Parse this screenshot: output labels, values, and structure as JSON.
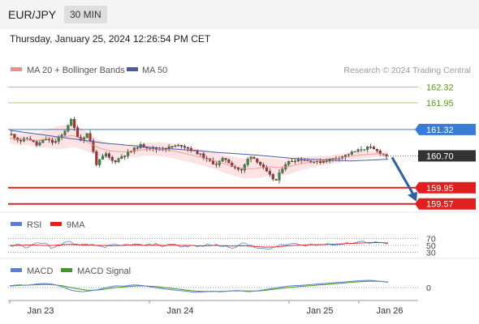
{
  "header": {
    "pair": "EUR/JPY",
    "timeframe": "30 MIN"
  },
  "timestamp": "Thursday, January 25, 2024 12:26:54 PM CET",
  "colors": {
    "bollinger": "#f08c8c",
    "bollinger_fill": "#fde3e3",
    "ma50": "#4a5aa8",
    "resistance": "#a5d07c",
    "resistance_text": "#5a9a1e",
    "pivot": "#3a7bd5",
    "support": "#e02020",
    "current": "#333333",
    "arrow": "#2f5fa0",
    "rsi": "#5b7fd8",
    "rsi_ma": "#e02020",
    "macd": "#5b7fd8",
    "macd_signal": "#3f9a1e"
  },
  "legend": {
    "bb_label": "MA 20 + Bollinger Bands",
    "ma50_label": "MA 50"
  },
  "watermark": "Research © 2024 Trading Central",
  "chart_data": {
    "type": "candlestick",
    "ylim": [
      159.45,
      162.5
    ],
    "x_labels": [
      "Jan 23",
      "Jan 24",
      "Jan 25",
      "Jan 26"
    ],
    "levels": [
      {
        "value": 162.32,
        "label": "162.32",
        "kind": "resistance"
      },
      {
        "value": 161.95,
        "label": "161.95",
        "kind": "resistance"
      },
      {
        "value": 161.32,
        "label": "161.32",
        "kind": "pivot"
      },
      {
        "value": 160.7,
        "label": "160.70",
        "kind": "current"
      },
      {
        "value": 159.95,
        "label": "159.95",
        "kind": "support"
      },
      {
        "value": 159.57,
        "label": "159.57",
        "kind": "support"
      }
    ],
    "price_path": [
      161.2,
      161.05,
      161.12,
      160.95,
      161.1,
      161.0,
      161.2,
      161.55,
      161.05,
      161.25,
      160.5,
      160.75,
      160.55,
      160.7,
      160.8,
      160.95,
      160.9,
      160.85,
      160.88,
      160.92,
      160.95,
      160.85,
      160.75,
      160.6,
      160.5,
      160.65,
      160.45,
      160.35,
      160.72,
      160.55,
      160.3,
      160.1,
      160.5,
      160.6,
      160.62,
      160.58,
      160.55,
      160.6,
      160.65,
      160.7,
      160.78,
      160.85,
      160.9,
      160.8,
      160.7
    ],
    "ma20": [
      161.12,
      161.08,
      161.1,
      161.06,
      161.1,
      161.12,
      161.15,
      161.18,
      161.1,
      160.98,
      160.88,
      160.82,
      160.8,
      160.8,
      160.82,
      160.85,
      160.86,
      160.85,
      160.82,
      160.78,
      160.73,
      160.68,
      160.62,
      160.57,
      160.5,
      160.45,
      160.4,
      160.4,
      160.42,
      160.44,
      160.42,
      160.45,
      160.5,
      160.54,
      160.57,
      160.59,
      160.62,
      160.66,
      160.7,
      160.72,
      160.74,
      160.75,
      160.74
    ],
    "ma50": [
      161.3,
      161.24,
      161.18,
      161.12,
      161.06,
      161.0,
      160.96,
      160.92,
      160.88,
      160.85,
      160.82,
      160.78,
      160.75,
      160.72,
      160.68,
      160.64,
      160.62,
      160.6,
      160.58,
      160.6,
      160.62
    ],
    "bb_width": [
      0.25,
      0.28,
      0.3,
      0.42,
      0.55,
      0.55,
      0.48,
      0.4,
      0.35,
      0.32,
      0.3,
      0.3,
      0.32,
      0.34,
      0.36,
      0.36,
      0.36,
      0.4,
      0.44,
      0.46,
      0.46,
      0.44,
      0.4,
      0.36,
      0.3,
      0.26,
      0.22,
      0.2,
      0.18,
      0.16,
      0.14,
      0.12
    ],
    "forecast_target": 159.57,
    "rsi": {
      "labels": [
        "RSI",
        "9MA"
      ],
      "levels": [
        70,
        50,
        30
      ],
      "level_labels": [
        "70",
        "50",
        "30"
      ],
      "ylim": [
        20,
        80
      ],
      "rsi_values": [
        47,
        52,
        44,
        55,
        58,
        41,
        53,
        62,
        49,
        53,
        50,
        46,
        51,
        49,
        53,
        52,
        50,
        54,
        47,
        56,
        45,
        50,
        46,
        52,
        51,
        47,
        44,
        56,
        50,
        43,
        37,
        48,
        52,
        55,
        49,
        53,
        50,
        56,
        52,
        55,
        58,
        62,
        57,
        60,
        54
      ],
      "ma_values": [
        50,
        50,
        51,
        51,
        50,
        50,
        52,
        53,
        52,
        51,
        50,
        50,
        49,
        50,
        51,
        51,
        50,
        51,
        50,
        51,
        50,
        50,
        49,
        49,
        50,
        49,
        48,
        49,
        48,
        46,
        45,
        46,
        48,
        50,
        51,
        52,
        52,
        53,
        54,
        55,
        56,
        57,
        58,
        58,
        57
      ]
    },
    "macd": {
      "labels": [
        "MACD",
        "MACD Signal"
      ],
      "zero_label": "0",
      "ylim": [
        -0.3,
        0.3
      ],
      "macd_values": [
        0.05,
        0.08,
        0.06,
        0.1,
        0.12,
        0.09,
        0.02,
        -0.08,
        -0.12,
        -0.1,
        -0.06,
        0.0,
        0.05,
        0.04,
        0.08,
        0.06,
        0.02,
        -0.02,
        -0.05,
        -0.08,
        -0.1,
        -0.14,
        -0.12,
        -0.11,
        -0.12,
        -0.1,
        -0.08,
        -0.12,
        -0.1,
        -0.06,
        -0.02,
        0.02,
        0.05,
        0.06,
        0.08,
        0.1,
        0.12,
        0.14,
        0.16,
        0.18,
        0.2,
        0.21,
        0.18,
        0.15
      ],
      "signal_values": [
        0.04,
        0.06,
        0.07,
        0.08,
        0.09,
        0.08,
        0.05,
        0.0,
        -0.05,
        -0.08,
        -0.07,
        -0.04,
        0.0,
        0.02,
        0.04,
        0.05,
        0.04,
        0.02,
        -0.01,
        -0.04,
        -0.07,
        -0.1,
        -0.11,
        -0.11,
        -0.11,
        -0.1,
        -0.09,
        -0.1,
        -0.1,
        -0.08,
        -0.05,
        -0.02,
        0.01,
        0.03,
        0.05,
        0.07,
        0.09,
        0.11,
        0.13,
        0.15,
        0.17,
        0.18,
        0.18,
        0.16
      ]
    }
  }
}
